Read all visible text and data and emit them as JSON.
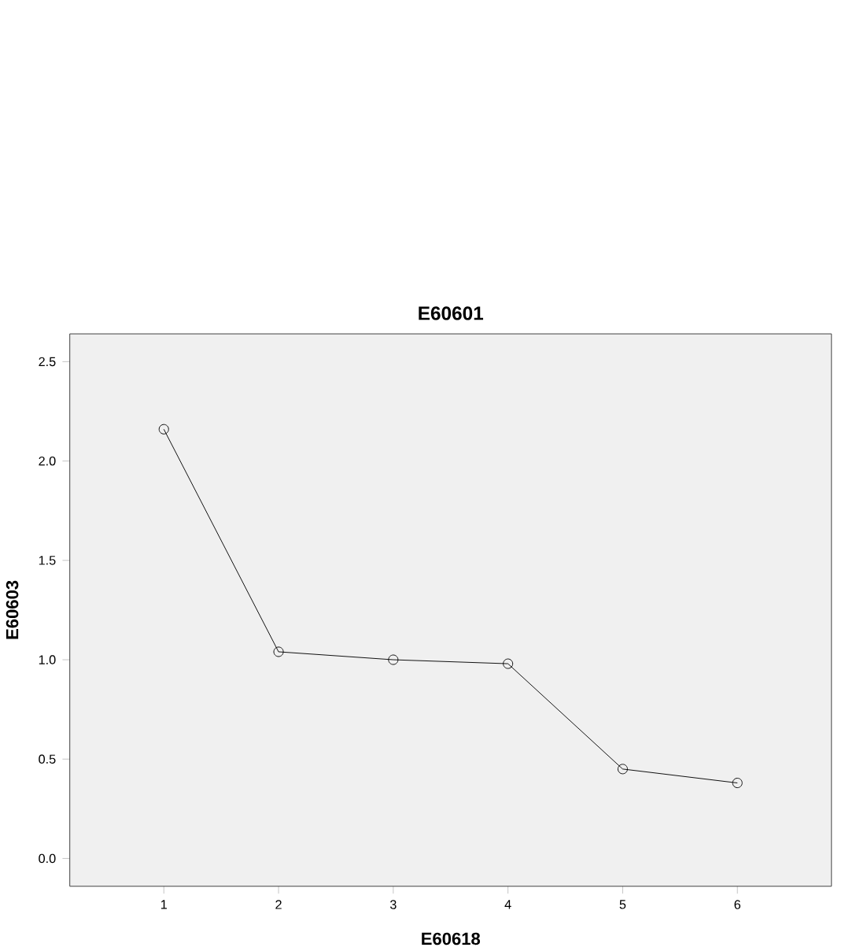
{
  "chart_data": {
    "type": "line",
    "title": "E60601",
    "xlabel": "E60618",
    "ylabel": "E60603",
    "x": [
      1,
      2,
      3,
      4,
      5,
      6
    ],
    "values": [
      2.16,
      1.04,
      1.0,
      0.98,
      0.45,
      0.38
    ],
    "color": "#000000",
    "marker": "circle",
    "line_style": "solid",
    "xlim": [
      0.18,
      6.82
    ],
    "ylim": [
      -0.14,
      2.64
    ],
    "xticks": [
      1,
      2,
      3,
      4,
      5,
      6
    ],
    "yticks": [
      {
        "value": 0,
        "label": "0.0"
      },
      {
        "value": 0.5,
        "label": "0.5"
      },
      {
        "value": 1,
        "label": "1.0"
      },
      {
        "value": 1.5,
        "label": "1.5"
      },
      {
        "value": 2,
        "label": "2.0"
      },
      {
        "value": 2.5,
        "label": "2.5"
      }
    ]
  }
}
